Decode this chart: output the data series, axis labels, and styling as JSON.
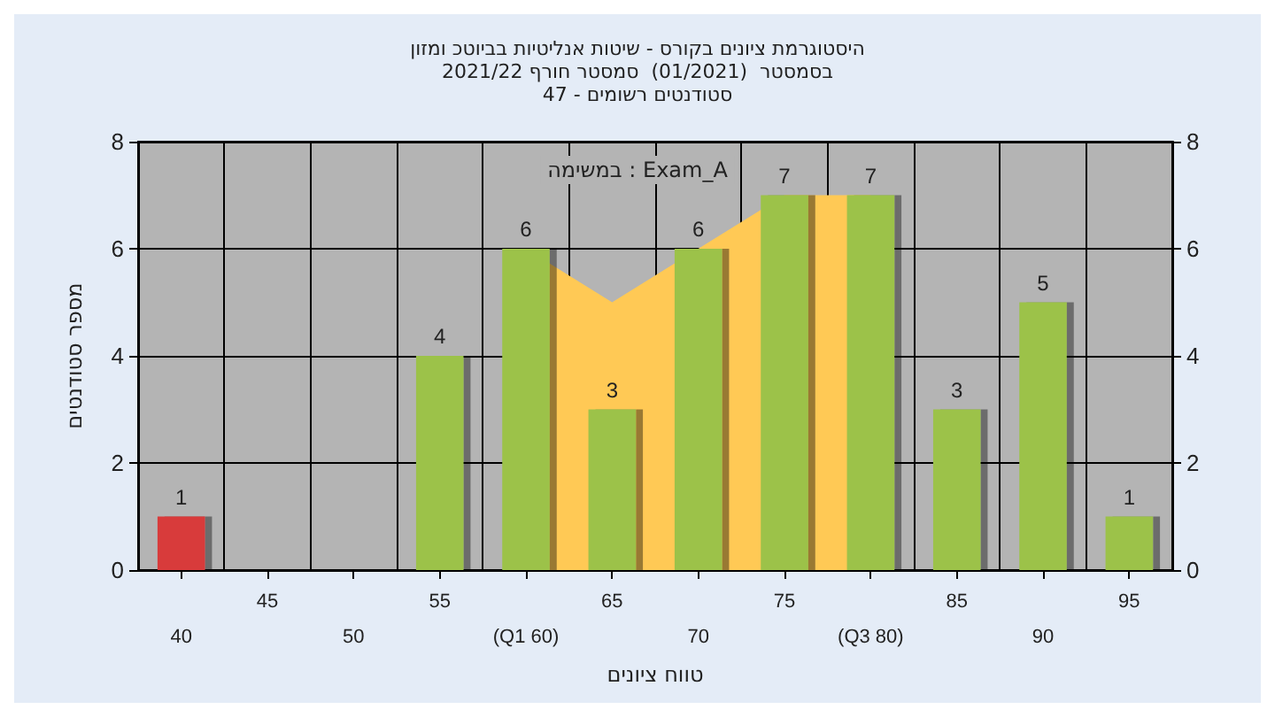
{
  "chart_data": {
    "type": "bar",
    "title": "היסטוגרמת ציונים בקורס - שיטות אנליטיות בביוטכ ומזון\nבסמסטר  (01/2021)  סמסטר חורף 2021/22\nסטודנטים רשומים - 47",
    "xlabel": "טווח ציונים",
    "ylabel": "מספר סטודנטים",
    "annotations": [
      "במשימה : Exam_A"
    ],
    "categories": [
      "40",
      "45",
      "50",
      "55",
      "(Q1 60)",
      "65",
      "70",
      "75",
      "(Q3 80)",
      "85",
      "90",
      "95"
    ],
    "series": [
      {
        "type": "area",
        "color": "#ffc955",
        "values": [
          null,
          null,
          null,
          null,
          6,
          5,
          null,
          7,
          7,
          null,
          null,
          null
        ]
      },
      {
        "colors": [
          "#d83a3a",
          "#9cc24a",
          "#9cc24a",
          "#9cc24a",
          "#9cc24a",
          "#9cc24a",
          "#9cc24a",
          "#9cc24a",
          "#9cc24a",
          "#9cc24a",
          "#9cc24a",
          "#9cc24a"
        ],
        "values": [
          1,
          0,
          0,
          4,
          6,
          3,
          6,
          7,
          7,
          3,
          5,
          1
        ],
        "value_labels": [
          "1",
          null,
          null,
          "4",
          "6",
          "3",
          "6",
          "7",
          "7",
          "3",
          "5",
          "1"
        ]
      }
    ],
    "ylim": [
      0,
      8
    ],
    "yticks": [
      0,
      2,
      4,
      6,
      8
    ],
    "y2lim": [
      0,
      8
    ],
    "y2ticks": [
      0,
      2,
      4,
      6,
      8
    ],
    "grid": true
  }
}
